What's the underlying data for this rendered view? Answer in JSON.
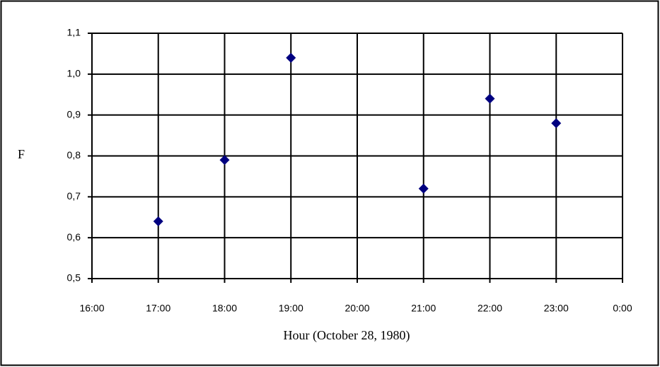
{
  "chart_data": {
    "type": "scatter",
    "x": [
      17,
      18,
      19,
      21,
      22,
      23
    ],
    "values": [
      0.64,
      0.79,
      1.04,
      0.72,
      0.94,
      0.88
    ],
    "color": "#000080",
    "xlabel": "Hour (October 28, 1980)",
    "ylabel": "F",
    "xlim": [
      16,
      24
    ],
    "xticks": [
      {
        "value": 16,
        "label": "16:00"
      },
      {
        "value": 17,
        "label": "17:00"
      },
      {
        "value": 18,
        "label": "18:00"
      },
      {
        "value": 19,
        "label": "19:00"
      },
      {
        "value": 20,
        "label": "20:00"
      },
      {
        "value": 21,
        "label": "21:00"
      },
      {
        "value": 22,
        "label": "22:00"
      },
      {
        "value": 23,
        "label": "23:00"
      },
      {
        "value": 24,
        "label": "0:00"
      }
    ],
    "ylim": [
      0.5,
      1.1
    ],
    "yticks": [
      {
        "value": 0.5,
        "label": "0,5"
      },
      {
        "value": 0.6,
        "label": "0,6"
      },
      {
        "value": 0.7,
        "label": "0,7"
      },
      {
        "value": 0.8,
        "label": "0,8"
      },
      {
        "value": 0.9,
        "label": "0,9"
      },
      {
        "value": 1.0,
        "label": "1,0"
      },
      {
        "value": 1.1,
        "label": "1,1"
      }
    ],
    "grid": true
  }
}
